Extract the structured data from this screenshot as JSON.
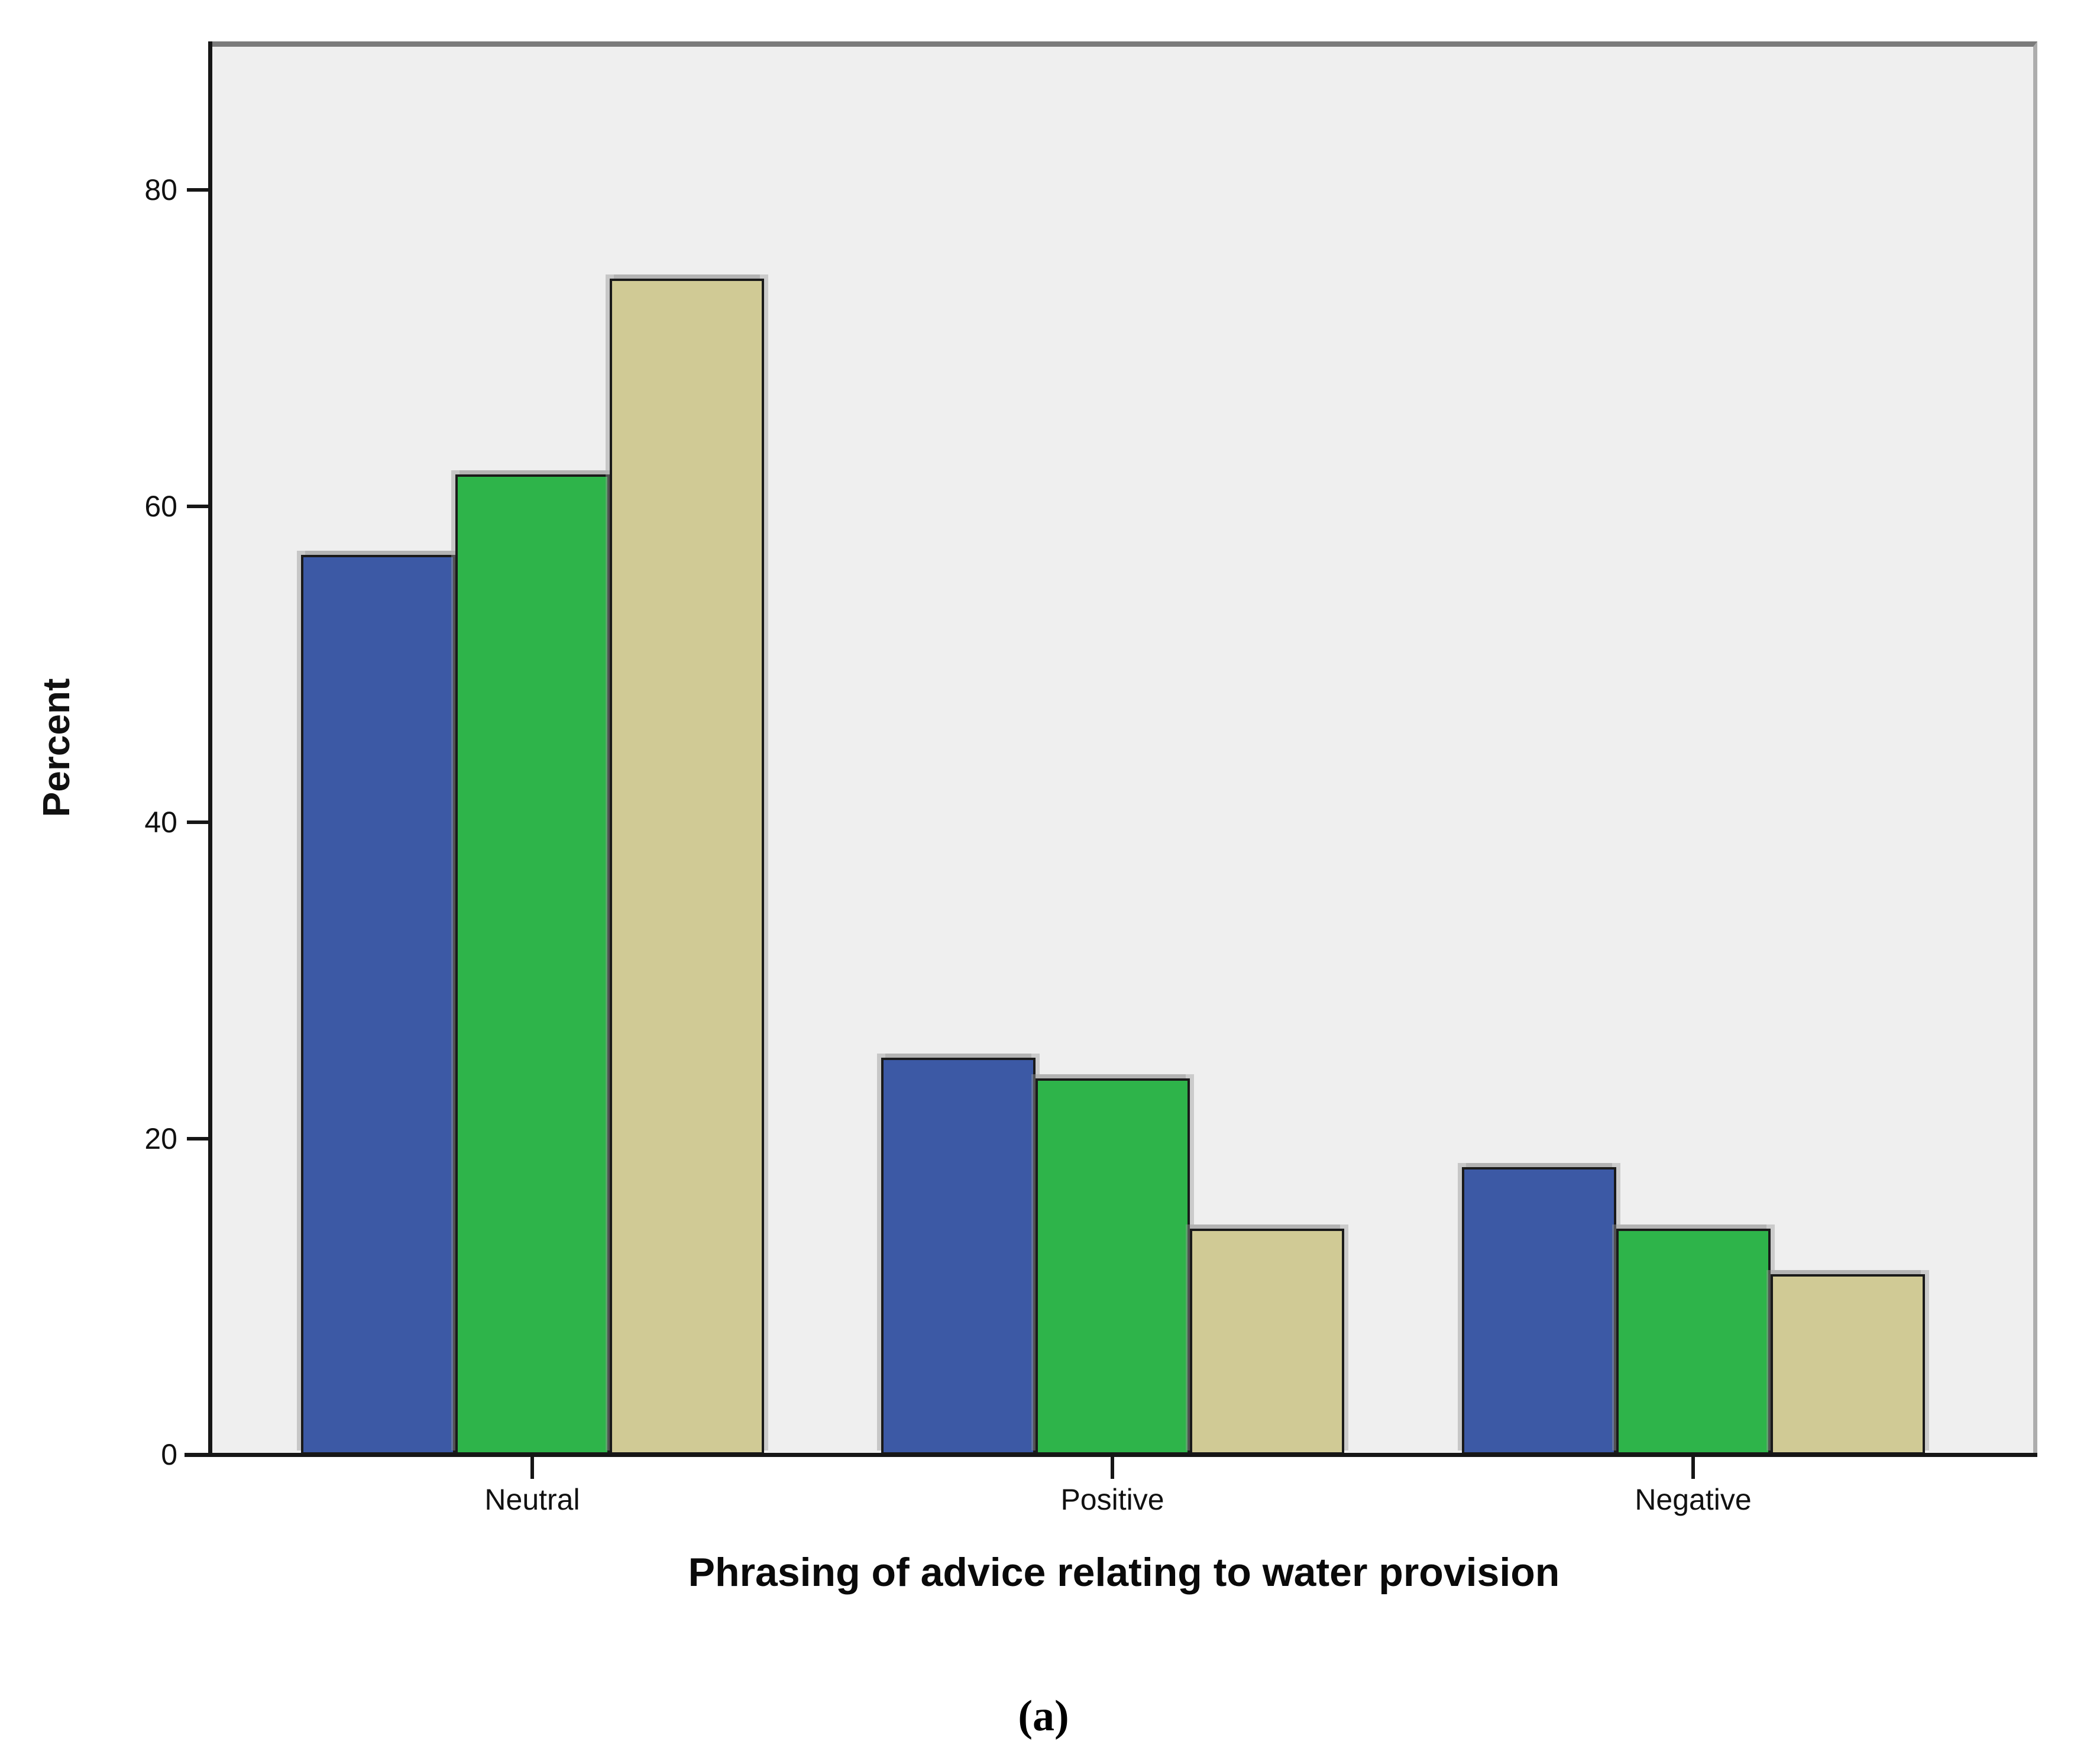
{
  "caption": "(a)",
  "chart_data": {
    "type": "bar",
    "title": "",
    "xlabel": "Phrasing of advice relating to water provision",
    "ylabel": "Percent",
    "categories": [
      "Neutral",
      "Positive",
      "Negative"
    ],
    "series": [
      {
        "name": "blue",
        "color": "#3C59A5",
        "values": [
          56.9,
          25.1,
          18.2
        ]
      },
      {
        "name": "green",
        "color": "#2EB44A",
        "values": [
          62.0,
          23.8,
          14.3
        ]
      },
      {
        "name": "tan",
        "color": "#D0CA95",
        "values": [
          74.4,
          14.3,
          11.4
        ]
      }
    ],
    "yticks": [
      0,
      20,
      40,
      60,
      80
    ],
    "ylim": [
      0,
      89
    ],
    "grid": false,
    "legend": "none",
    "plot_background": "#EFEFEF",
    "axis_color": "#161616",
    "bar_border_color": "#1A1A1A"
  }
}
